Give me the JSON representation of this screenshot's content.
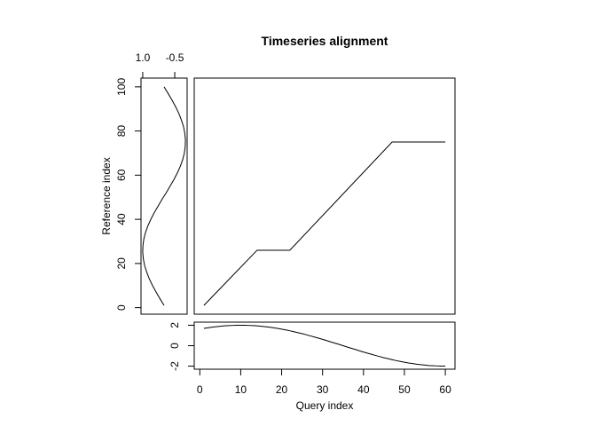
{
  "chart_data": [
    {
      "type": "line",
      "title": "Timeseries alignment",
      "x": [
        1,
        14,
        22,
        47,
        60
      ],
      "values": [
        1,
        26,
        26,
        75,
        75
      ],
      "xlim": [
        -1.36,
        62.36
      ],
      "ylim": [
        -2.96,
        103.96
      ],
      "color": "#000000"
    },
    {
      "type": "vline",
      "ylabel": "Reference index",
      "y": [
        1,
        4,
        7,
        10,
        13,
        16,
        19,
        22,
        25,
        28,
        31,
        34,
        37,
        40,
        43,
        46,
        49,
        52,
        55,
        58,
        61,
        64,
        67,
        70,
        73,
        76,
        79,
        82,
        85,
        88,
        91,
        94,
        97,
        100
      ],
      "values": [
        0,
        0.19,
        0.37,
        0.54,
        0.69,
        0.81,
        0.91,
        0.97,
        1.0,
        0.99,
        0.95,
        0.87,
        0.76,
        0.62,
        0.46,
        0.28,
        0.1,
        -0.1,
        -0.28,
        -0.46,
        -0.62,
        -0.76,
        -0.87,
        -0.95,
        -0.99,
        -1.0,
        -0.97,
        -0.91,
        -0.81,
        -0.69,
        -0.54,
        -0.37,
        -0.19,
        0
      ],
      "xlim": [
        1.08,
        -1.08
      ],
      "xticks": [
        {
          "value": 1,
          "label": "1.0"
        },
        -0.5
      ],
      "ylim": [
        -2.96,
        103.96
      ],
      "yticks": [
        0,
        20,
        40,
        60,
        80,
        100
      ],
      "color": "#000000"
    },
    {
      "type": "line",
      "xlabel": "Query index",
      "x": [
        1,
        2,
        3,
        4,
        5,
        6,
        7,
        8,
        9,
        10,
        11,
        12,
        13,
        14,
        15,
        16,
        17,
        18,
        19,
        20,
        21,
        22,
        23,
        24,
        25,
        26,
        27,
        28,
        29,
        30,
        31,
        32,
        33,
        34,
        35,
        36,
        37,
        38,
        39,
        40,
        41,
        42,
        43,
        44,
        45,
        46,
        47,
        48,
        49,
        50,
        51,
        52,
        53,
        54,
        55,
        56,
        57,
        58,
        59,
        60
      ],
      "values": [
        1.69,
        1.75,
        1.81,
        1.86,
        1.9,
        1.94,
        1.96,
        1.98,
        2.0,
        2.0,
        2.0,
        1.98,
        1.96,
        1.94,
        1.9,
        1.86,
        1.81,
        1.75,
        1.69,
        1.62,
        1.54,
        1.46,
        1.37,
        1.27,
        1.18,
        1.07,
        0.96,
        0.85,
        0.74,
        0.62,
        0.5,
        0.37,
        0.25,
        0.13,
        0,
        -0.13,
        -0.25,
        -0.37,
        -0.5,
        -0.62,
        -0.74,
        -0.85,
        -0.96,
        -1.07,
        -1.18,
        -1.27,
        -1.37,
        -1.46,
        -1.54,
        -1.62,
        -1.69,
        -1.75,
        -1.81,
        -1.86,
        -1.9,
        -1.94,
        -1.96,
        -1.98,
        -2.0,
        -2.0
      ],
      "xlim": [
        -1.36,
        62.36
      ],
      "xticks": [
        0,
        10,
        20,
        30,
        40,
        50,
        60
      ],
      "ylim": [
        -2.3,
        2.3
      ],
      "yticks": [
        -2,
        0,
        2
      ],
      "color": "#000000"
    }
  ]
}
